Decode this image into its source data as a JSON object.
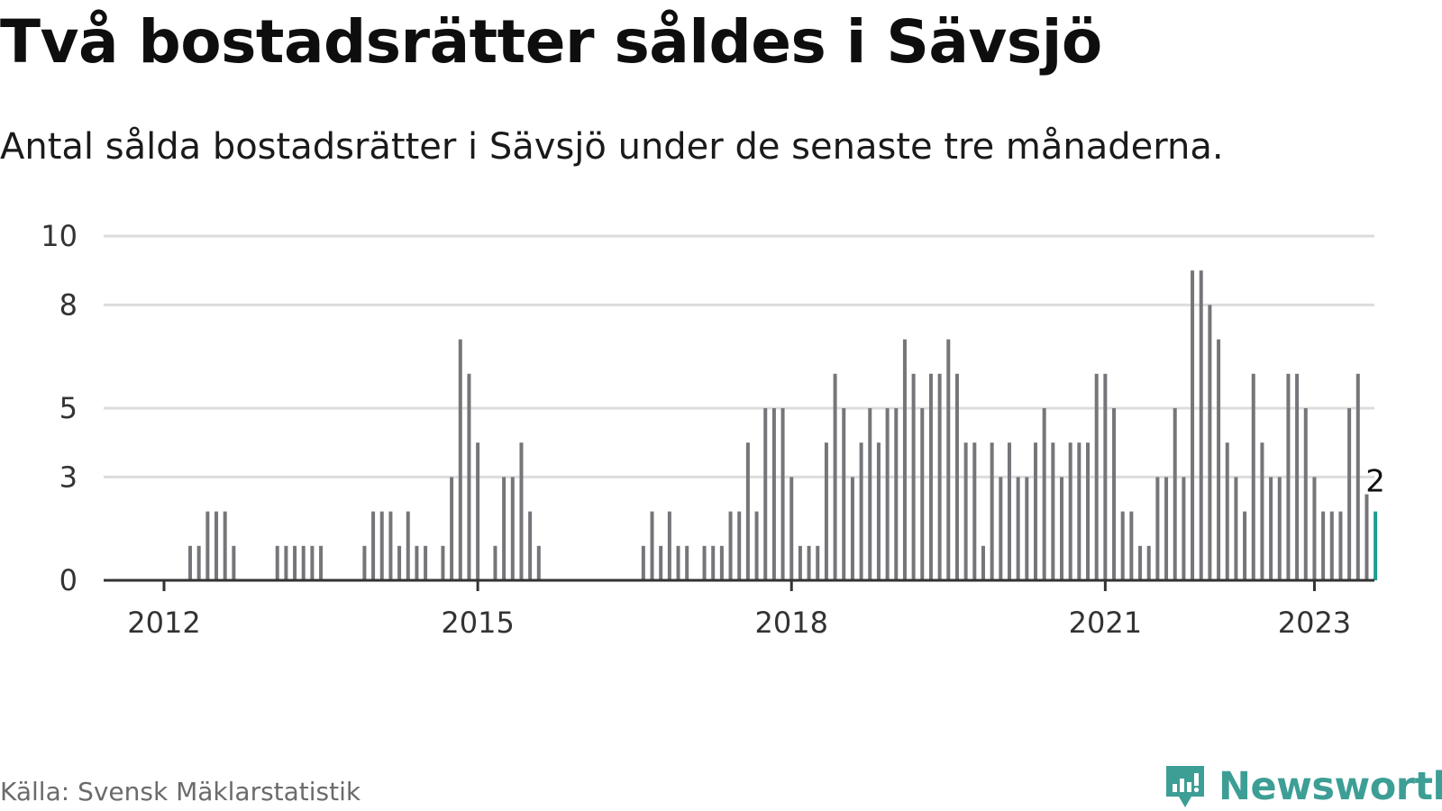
{
  "title": "Två bostadsrätter såldes i Sävsjö",
  "subtitle": "Antal sålda bostadsrätter i Sävsjö under de senaste tre månaderna.",
  "source": "Källa: Svensk Mäklarstatistik",
  "brand": {
    "name": "Newsworthy",
    "color": "#3d9e95",
    "icon": "newsworthy-logo-icon"
  },
  "chart_data": {
    "type": "bar",
    "ylim": [
      0,
      10
    ],
    "yticks": [
      0,
      3,
      5,
      8,
      10
    ],
    "xticks": [
      "2012",
      "2015",
      "2018",
      "2021",
      "2023"
    ],
    "grid": true,
    "bar_color": "#75757a",
    "highlight_color": "#1f9e8f",
    "highlight_label": "2",
    "x_start": "2011-06",
    "values": [
      0,
      0,
      0,
      0,
      0,
      0,
      0,
      0,
      0,
      0,
      1,
      1,
      2,
      2,
      2,
      1,
      0,
      0,
      0,
      0,
      1,
      1,
      1,
      1,
      1,
      1,
      0,
      0,
      0,
      0,
      1,
      2,
      2,
      2,
      1,
      2,
      1,
      1,
      0,
      1,
      3,
      7,
      6,
      4,
      0,
      1,
      3,
      3,
      4,
      2,
      1,
      0,
      0,
      0,
      0,
      0,
      0,
      0,
      0,
      0,
      0,
      0,
      1,
      2,
      1,
      2,
      1,
      1,
      0,
      1,
      1,
      1,
      2,
      2,
      4,
      2,
      5,
      5,
      5,
      3,
      1,
      1,
      1,
      4,
      6,
      5,
      3,
      4,
      5,
      4,
      5,
      5,
      7,
      6,
      5,
      6,
      6,
      7,
      6,
      4,
      4,
      1,
      4,
      3,
      4,
      3,
      3,
      4,
      5,
      4,
      3,
      4,
      4,
      4,
      6,
      6,
      5,
      2,
      2,
      1,
      1,
      3,
      3,
      5,
      3,
      9,
      9,
      8,
      7,
      4,
      3,
      2,
      6,
      4,
      3,
      3,
      6,
      6,
      5,
      3,
      2,
      2,
      2,
      5,
      6,
      2.5,
      2
    ]
  }
}
